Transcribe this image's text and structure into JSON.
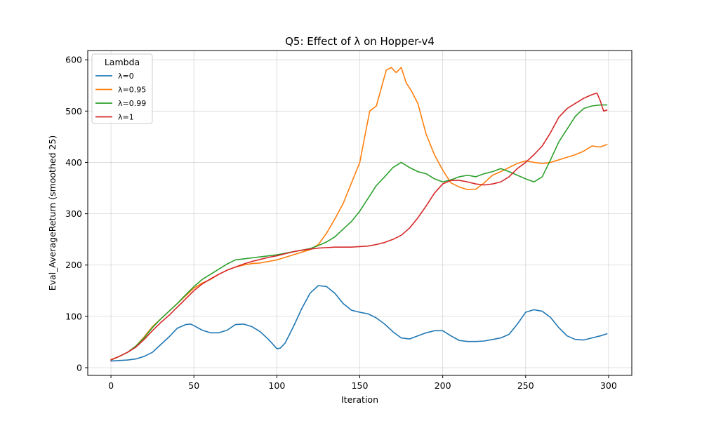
{
  "chart_data": {
    "type": "line",
    "title": "Q5: Effect of λ on Hopper-v4",
    "xlabel": "Iteration",
    "ylabel": "Eval_AverageReturn (smoothed 25)",
    "xlim": [
      -14,
      314
    ],
    "ylim": [
      -15,
      618
    ],
    "xticks": [
      0,
      50,
      100,
      150,
      200,
      250,
      300
    ],
    "yticks": [
      0,
      100,
      200,
      300,
      400,
      500,
      600
    ],
    "grid": true,
    "legend": {
      "title": "Lambda",
      "placement": "top-left"
    },
    "series": [
      {
        "name": "λ=0",
        "color": "#1f77b4",
        "points": [
          [
            0,
            13
          ],
          [
            5,
            14
          ],
          [
            10,
            15
          ],
          [
            15,
            17
          ],
          [
            20,
            22
          ],
          [
            25,
            30
          ],
          [
            30,
            45
          ],
          [
            35,
            60
          ],
          [
            40,
            77
          ],
          [
            45,
            84
          ],
          [
            48,
            85
          ],
          [
            50,
            82
          ],
          [
            55,
            73
          ],
          [
            60,
            68
          ],
          [
            65,
            68
          ],
          [
            70,
            73
          ],
          [
            75,
            84
          ],
          [
            80,
            85
          ],
          [
            85,
            80
          ],
          [
            90,
            70
          ],
          [
            95,
            55
          ],
          [
            100,
            37
          ],
          [
            102,
            38
          ],
          [
            105,
            48
          ],
          [
            110,
            80
          ],
          [
            115,
            115
          ],
          [
            120,
            145
          ],
          [
            125,
            160
          ],
          [
            130,
            158
          ],
          [
            135,
            145
          ],
          [
            140,
            125
          ],
          [
            145,
            112
          ],
          [
            150,
            108
          ],
          [
            155,
            105
          ],
          [
            160,
            97
          ],
          [
            165,
            85
          ],
          [
            170,
            70
          ],
          [
            175,
            58
          ],
          [
            180,
            56
          ],
          [
            185,
            62
          ],
          [
            190,
            68
          ],
          [
            195,
            72
          ],
          [
            200,
            72
          ],
          [
            205,
            62
          ],
          [
            210,
            53
          ],
          [
            215,
            51
          ],
          [
            220,
            51
          ],
          [
            225,
            52
          ],
          [
            230,
            55
          ],
          [
            235,
            58
          ],
          [
            240,
            65
          ],
          [
            245,
            85
          ],
          [
            250,
            108
          ],
          [
            255,
            113
          ],
          [
            260,
            110
          ],
          [
            265,
            98
          ],
          [
            270,
            78
          ],
          [
            275,
            62
          ],
          [
            280,
            55
          ],
          [
            285,
            54
          ],
          [
            290,
            58
          ],
          [
            295,
            62
          ],
          [
            299,
            66
          ]
        ]
      },
      {
        "name": "λ=0.95",
        "color": "#ff7f0e",
        "points": [
          [
            0,
            16
          ],
          [
            5,
            22
          ],
          [
            10,
            30
          ],
          [
            15,
            42
          ],
          [
            20,
            60
          ],
          [
            25,
            80
          ],
          [
            30,
            95
          ],
          [
            35,
            110
          ],
          [
            40,
            125
          ],
          [
            45,
            140
          ],
          [
            50,
            155
          ],
          [
            55,
            165
          ],
          [
            60,
            172
          ],
          [
            65,
            182
          ],
          [
            70,
            190
          ],
          [
            75,
            196
          ],
          [
            80,
            200
          ],
          [
            85,
            203
          ],
          [
            90,
            204
          ],
          [
            95,
            207
          ],
          [
            100,
            210
          ],
          [
            105,
            215
          ],
          [
            110,
            220
          ],
          [
            115,
            225
          ],
          [
            120,
            230
          ],
          [
            125,
            240
          ],
          [
            130,
            262
          ],
          [
            135,
            290
          ],
          [
            140,
            320
          ],
          [
            145,
            360
          ],
          [
            150,
            400
          ],
          [
            153,
            450
          ],
          [
            156,
            500
          ],
          [
            160,
            510
          ],
          [
            163,
            545
          ],
          [
            166,
            580
          ],
          [
            169,
            585
          ],
          [
            172,
            575
          ],
          [
            175,
            585
          ],
          [
            178,
            555
          ],
          [
            181,
            540
          ],
          [
            185,
            515
          ],
          [
            190,
            455
          ],
          [
            195,
            415
          ],
          [
            200,
            385
          ],
          [
            205,
            360
          ],
          [
            210,
            352
          ],
          [
            215,
            347
          ],
          [
            220,
            348
          ],
          [
            225,
            360
          ],
          [
            230,
            375
          ],
          [
            235,
            382
          ],
          [
            240,
            390
          ],
          [
            245,
            398
          ],
          [
            250,
            403
          ],
          [
            255,
            400
          ],
          [
            260,
            398
          ],
          [
            265,
            400
          ],
          [
            270,
            405
          ],
          [
            275,
            410
          ],
          [
            280,
            415
          ],
          [
            285,
            422
          ],
          [
            290,
            432
          ],
          [
            295,
            430
          ],
          [
            299,
            435
          ]
        ]
      },
      {
        "name": "λ=0.99",
        "color": "#2ca02c",
        "points": [
          [
            0,
            15
          ],
          [
            5,
            22
          ],
          [
            10,
            30
          ],
          [
            15,
            42
          ],
          [
            20,
            58
          ],
          [
            25,
            78
          ],
          [
            30,
            95
          ],
          [
            35,
            110
          ],
          [
            40,
            125
          ],
          [
            45,
            142
          ],
          [
            50,
            158
          ],
          [
            55,
            172
          ],
          [
            60,
            182
          ],
          [
            65,
            192
          ],
          [
            70,
            202
          ],
          [
            75,
            210
          ],
          [
            80,
            212
          ],
          [
            85,
            214
          ],
          [
            90,
            216
          ],
          [
            95,
            218
          ],
          [
            100,
            220
          ],
          [
            105,
            223
          ],
          [
            110,
            226
          ],
          [
            115,
            229
          ],
          [
            120,
            232
          ],
          [
            125,
            238
          ],
          [
            130,
            245
          ],
          [
            135,
            255
          ],
          [
            140,
            270
          ],
          [
            145,
            285
          ],
          [
            150,
            305
          ],
          [
            155,
            330
          ],
          [
            160,
            355
          ],
          [
            165,
            372
          ],
          [
            170,
            390
          ],
          [
            175,
            400
          ],
          [
            180,
            390
          ],
          [
            185,
            382
          ],
          [
            190,
            378
          ],
          [
            195,
            368
          ],
          [
            200,
            362
          ],
          [
            205,
            366
          ],
          [
            210,
            372
          ],
          [
            215,
            375
          ],
          [
            220,
            372
          ],
          [
            225,
            378
          ],
          [
            230,
            382
          ],
          [
            235,
            388
          ],
          [
            240,
            382
          ],
          [
            245,
            375
          ],
          [
            250,
            368
          ],
          [
            255,
            362
          ],
          [
            260,
            372
          ],
          [
            265,
            405
          ],
          [
            270,
            440
          ],
          [
            275,
            465
          ],
          [
            280,
            490
          ],
          [
            285,
            505
          ],
          [
            290,
            510
          ],
          [
            295,
            512
          ],
          [
            299,
            512
          ]
        ]
      },
      {
        "name": "λ=1",
        "color": "#d62728",
        "points": [
          [
            0,
            15
          ],
          [
            5,
            22
          ],
          [
            10,
            30
          ],
          [
            15,
            40
          ],
          [
            20,
            55
          ],
          [
            25,
            72
          ],
          [
            30,
            88
          ],
          [
            35,
            102
          ],
          [
            40,
            118
          ],
          [
            45,
            134
          ],
          [
            50,
            150
          ],
          [
            55,
            163
          ],
          [
            60,
            173
          ],
          [
            65,
            182
          ],
          [
            70,
            190
          ],
          [
            75,
            196
          ],
          [
            80,
            202
          ],
          [
            85,
            207
          ],
          [
            90,
            211
          ],
          [
            95,
            215
          ],
          [
            100,
            218
          ],
          [
            105,
            222
          ],
          [
            110,
            226
          ],
          [
            115,
            229
          ],
          [
            120,
            231
          ],
          [
            125,
            233
          ],
          [
            130,
            234
          ],
          [
            135,
            235
          ],
          [
            140,
            235
          ],
          [
            145,
            235
          ],
          [
            150,
            236
          ],
          [
            155,
            237
          ],
          [
            160,
            240
          ],
          [
            165,
            244
          ],
          [
            170,
            250
          ],
          [
            175,
            258
          ],
          [
            180,
            272
          ],
          [
            185,
            292
          ],
          [
            190,
            315
          ],
          [
            195,
            340
          ],
          [
            200,
            358
          ],
          [
            205,
            365
          ],
          [
            210,
            365
          ],
          [
            215,
            362
          ],
          [
            220,
            358
          ],
          [
            225,
            356
          ],
          [
            230,
            358
          ],
          [
            235,
            362
          ],
          [
            240,
            372
          ],
          [
            245,
            388
          ],
          [
            250,
            400
          ],
          [
            255,
            415
          ],
          [
            260,
            432
          ],
          [
            265,
            458
          ],
          [
            270,
            488
          ],
          [
            275,
            505
          ],
          [
            280,
            515
          ],
          [
            285,
            525
          ],
          [
            290,
            532
          ],
          [
            293,
            535
          ],
          [
            295,
            520
          ],
          [
            297,
            500
          ],
          [
            299,
            502
          ]
        ]
      }
    ]
  }
}
